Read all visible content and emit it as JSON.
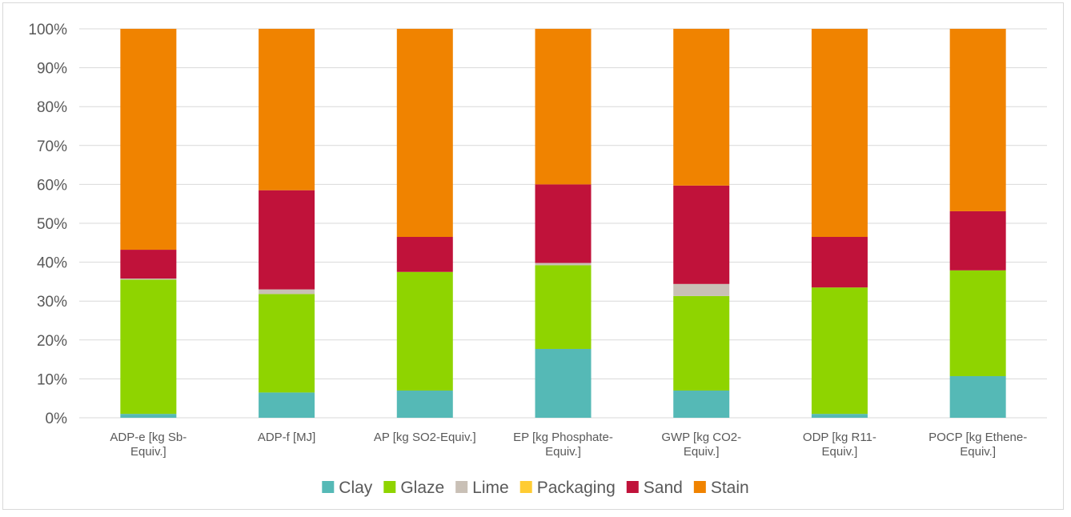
{
  "chart_data": {
    "type": "bar",
    "stacked": true,
    "percent": true,
    "categories": [
      [
        "ADP-e [kg Sb-",
        "Equiv.]"
      ],
      [
        "ADP-f [MJ]"
      ],
      [
        "AP [kg SO2-Equiv.]"
      ],
      [
        "EP [kg Phosphate-",
        "Equiv.]"
      ],
      [
        "GWP [kg CO2-",
        "Equiv.]"
      ],
      [
        "ODP [kg R11-",
        "Equiv.]"
      ],
      [
        "POCP [kg Ethene-",
        "Equiv.]"
      ]
    ],
    "series": [
      {
        "name": "Clay",
        "color": "#55b9b6",
        "values": [
          1,
          6.5,
          7,
          17.7,
          7,
          1,
          10.7
        ]
      },
      {
        "name": "Glaze",
        "color": "#8fd400",
        "values": [
          34.5,
          25.3,
          30.5,
          21.5,
          24.3,
          32.5,
          27.2
        ]
      },
      {
        "name": "Lime",
        "color": "#c9c0b6",
        "values": [
          0.3,
          1.2,
          0,
          0.6,
          3.1,
          0,
          0
        ]
      },
      {
        "name": "Packaging",
        "color": "#ffcc33",
        "values": [
          0,
          0,
          0,
          0,
          0,
          0,
          0
        ]
      },
      {
        "name": "Sand",
        "color": "#c0123a",
        "values": [
          7.4,
          25.5,
          9,
          20.2,
          25.3,
          13,
          15.2
        ]
      },
      {
        "name": "Stain",
        "color": "#f08300",
        "values": [
          56.8,
          41.5,
          53.5,
          40,
          40.3,
          53.5,
          46.9
        ]
      }
    ],
    "yticks": [
      "0%",
      "10%",
      "20%",
      "30%",
      "40%",
      "50%",
      "60%",
      "70%",
      "80%",
      "90%",
      "100%"
    ],
    "ylim": [
      0,
      100
    ],
    "grid": true,
    "legend_position": "bottom",
    "title": "",
    "xlabel": "",
    "ylabel": ""
  }
}
